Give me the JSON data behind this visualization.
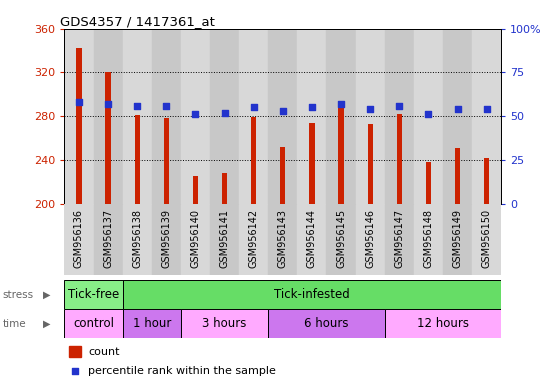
{
  "title": "GDS4357 / 1417361_at",
  "categories": [
    "GSM956136",
    "GSM956137",
    "GSM956138",
    "GSM956139",
    "GSM956140",
    "GSM956141",
    "GSM956142",
    "GSM956143",
    "GSM956144",
    "GSM956145",
    "GSM956146",
    "GSM956147",
    "GSM956148",
    "GSM956149",
    "GSM956150"
  ],
  "bar_values": [
    342,
    320,
    281,
    278,
    225,
    228,
    279,
    252,
    274,
    290,
    273,
    282,
    238,
    251,
    242
  ],
  "blue_dot_pct": [
    58,
    57,
    56,
    56,
    51,
    52,
    55,
    53,
    55,
    57,
    54,
    56,
    51,
    54,
    54
  ],
  "ymin": 200,
  "ymax": 360,
  "yticks": [
    200,
    240,
    280,
    320,
    360
  ],
  "right_yticks": [
    0,
    25,
    50,
    75,
    100
  ],
  "bar_color": "#cc2200",
  "dot_color": "#2233cc",
  "stress_groups": [
    {
      "label": "Tick-free",
      "start": 0,
      "end": 2,
      "color": "#88ee88"
    },
    {
      "label": "Tick-infested",
      "start": 2,
      "end": 15,
      "color": "#66dd66"
    }
  ],
  "time_groups": [
    {
      "label": "control",
      "start": 0,
      "end": 2,
      "color": "#ffaaff"
    },
    {
      "label": "1 hour",
      "start": 2,
      "end": 4,
      "color": "#cc77ee"
    },
    {
      "label": "3 hours",
      "start": 4,
      "end": 7,
      "color": "#ffaaff"
    },
    {
      "label": "6 hours",
      "start": 7,
      "end": 11,
      "color": "#cc77ee"
    },
    {
      "label": "12 hours",
      "start": 11,
      "end": 15,
      "color": "#ffaaff"
    }
  ],
  "col_bg_even": "#d8d8d8",
  "col_bg_odd": "#c8c8c8"
}
